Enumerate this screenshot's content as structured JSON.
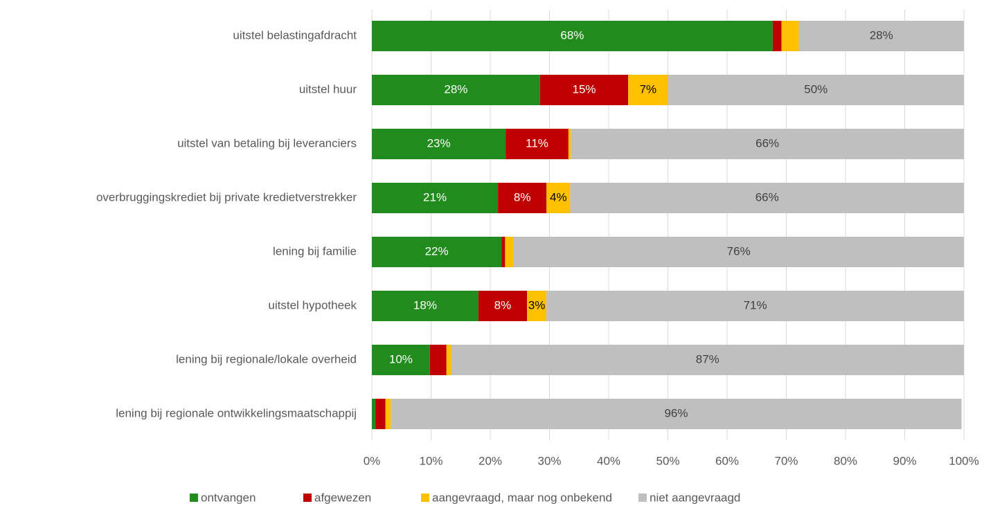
{
  "chart_data": {
    "type": "stacked-barh",
    "categories": [
      "uitstel belastingafdracht",
      "uitstel huur",
      "uitstel van betaling bij leveranciers",
      "overbruggingskrediet bij private kredietverstrekker",
      "lening bij familie",
      "uitstel hypotheek",
      "lening bij regionale/lokale overheid",
      "lening bij regionale ontwikkelingsmaatschappij"
    ],
    "series": [
      {
        "name": "ontvangen",
        "color": "#228b1e",
        "values": [
          67.7,
          28.4,
          22.6,
          21.3,
          21.9,
          18.0,
          9.8,
          0.6
        ],
        "value_labels": [
          "68%",
          "28%",
          "23%",
          "21%",
          "22%",
          "18%",
          "10%",
          null
        ]
      },
      {
        "name": "afgewezen",
        "color": "#c00000",
        "values": [
          1.5,
          14.9,
          10.6,
          8.2,
          0.6,
          8.2,
          2.8,
          1.7
        ],
        "value_labels": [
          null,
          "15%",
          "11%",
          "8%",
          null,
          "8%",
          null,
          null
        ]
      },
      {
        "name": "aangevraagd, maar nog onbekend",
        "color": "#ffc000",
        "values": [
          2.9,
          6.7,
          0.4,
          4.0,
          1.4,
          3.3,
          0.8,
          0.9
        ],
        "value_labels": [
          null,
          "7%",
          null,
          "4%",
          null,
          "3%",
          null,
          null
        ]
      },
      {
        "name": "niet aangevraagd",
        "color": "#bfbfbf",
        "values": [
          27.9,
          50.0,
          66.4,
          66.5,
          76.1,
          70.5,
          86.6,
          96.4
        ],
        "value_labels": [
          "28%",
          "50%",
          "66%",
          "66%",
          "76%",
          "71%",
          "87%",
          "96%"
        ]
      }
    ],
    "xlim": [
      0,
      100
    ],
    "xticks": [
      {
        "value": 0,
        "label": "0%"
      },
      {
        "value": 10,
        "label": "10%"
      },
      {
        "value": 20,
        "label": "20%"
      },
      {
        "value": 30,
        "label": "30%"
      },
      {
        "value": 40,
        "label": "40%"
      },
      {
        "value": 50,
        "label": "50%"
      },
      {
        "value": 60,
        "label": "60%"
      },
      {
        "value": 70,
        "label": "70%"
      },
      {
        "value": 80,
        "label": "80%"
      },
      {
        "value": 90,
        "label": "90%"
      },
      {
        "value": 100,
        "label": "100%"
      }
    ],
    "grid": true,
    "legend": "bottom"
  }
}
